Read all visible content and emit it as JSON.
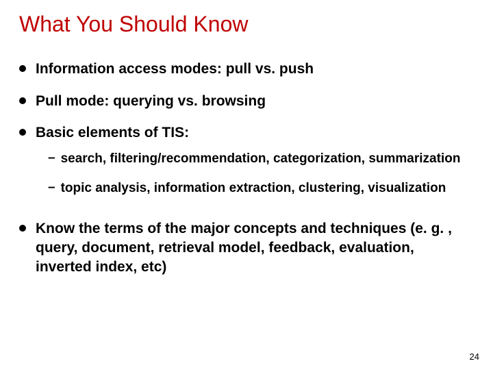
{
  "title": "What You Should Know",
  "title_color": "#c00000",
  "text_color": "#000000",
  "background_color": "#ffffff",
  "title_fontsize": 32,
  "bullet_fontsize": 21,
  "sub_fontsize": 19,
  "bullets": [
    {
      "text": "Information access modes: pull vs. push"
    },
    {
      "text": "Pull mode: querying vs. browsing"
    },
    {
      "text": "Basic elements of TIS:"
    }
  ],
  "sub_bullets": [
    {
      "text": "search, filtering/recommendation, categorization, summarization"
    },
    {
      "text": "topic analysis, information extraction, clustering, visualization"
    }
  ],
  "final_bullet": {
    "text": "Know the terms of the major concepts and techniques (e. g. , query, document, retrieval model, feedback, evaluation, inverted index, etc)"
  },
  "page_number": "24"
}
